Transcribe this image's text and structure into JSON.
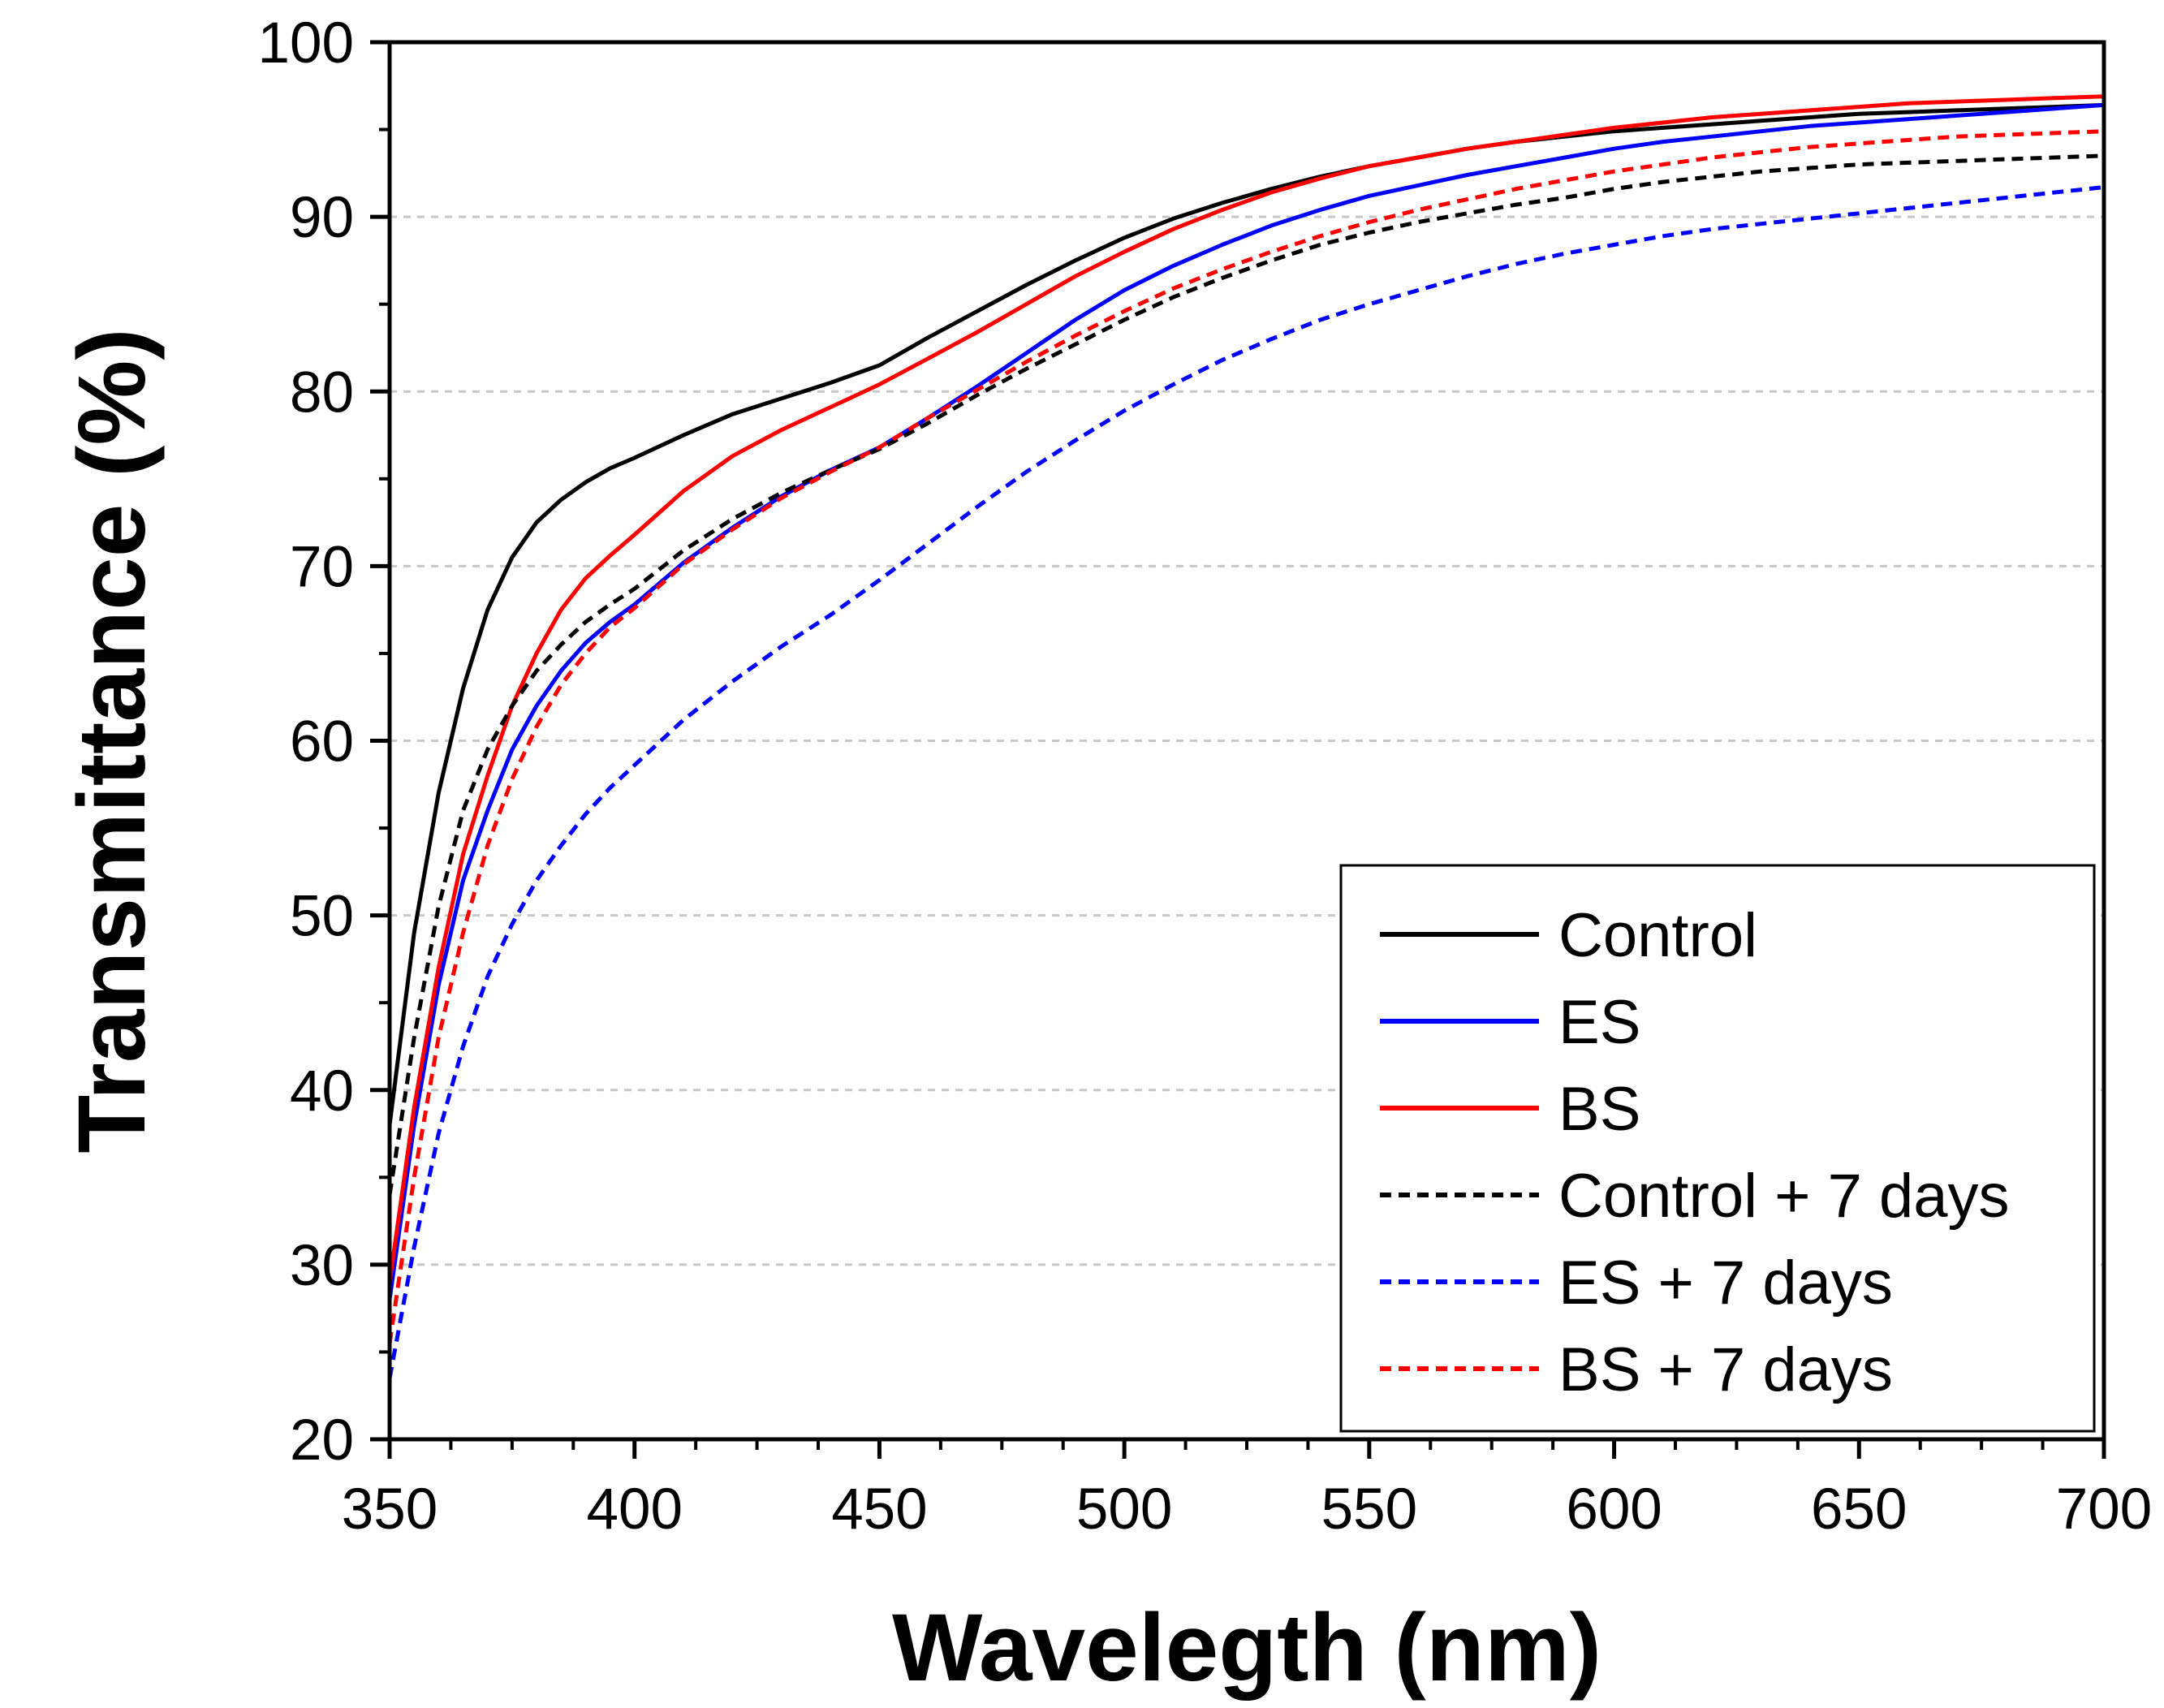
{
  "chart_data": {
    "type": "line",
    "title": "",
    "xlabel": "Wavelegth (nm)",
    "ylabel": "Transmittance (%)",
    "xlim": [
      350,
      700
    ],
    "ylim": [
      20,
      100
    ],
    "xticks": [
      350,
      400,
      450,
      500,
      550,
      600,
      650,
      700
    ],
    "yticks": [
      20,
      30,
      40,
      50,
      60,
      70,
      80,
      90,
      100
    ],
    "grid": "horizontal dashed",
    "legend_position": "bottom-right",
    "x": [
      350,
      355,
      360,
      365,
      370,
      375,
      380,
      385,
      390,
      395,
      400,
      410,
      420,
      430,
      440,
      450,
      460,
      470,
      480,
      490,
      500,
      510,
      520,
      530,
      540,
      550,
      560,
      570,
      580,
      590,
      600,
      610,
      620,
      630,
      640,
      650,
      660,
      670,
      680,
      690,
      700
    ],
    "series": [
      {
        "name": "Control",
        "color": "#000000",
        "dash": "solid",
        "values": [
          38,
          49,
          57,
          63,
          67.5,
          70.5,
          72.5,
          73.8,
          74.8,
          75.6,
          76.2,
          77.5,
          78.7,
          79.6,
          80.5,
          81.5,
          83.1,
          84.6,
          86.1,
          87.5,
          88.8,
          89.9,
          90.8,
          91.6,
          92.3,
          92.9,
          93.4,
          93.9,
          94.3,
          94.6,
          94.9,
          95.1,
          95.3,
          95.5,
          95.7,
          95.9,
          96,
          96.1,
          96.2,
          96.3,
          96.4
        ]
      },
      {
        "name": "ES",
        "color": "#0000FF",
        "dash": "solid",
        "values": [
          28,
          38,
          46,
          52,
          56,
          59.5,
          62,
          64,
          65.6,
          66.8,
          67.8,
          70.2,
          72.2,
          74,
          75.5,
          76.8,
          78.5,
          80.3,
          82.2,
          84.1,
          85.8,
          87.2,
          88.4,
          89.5,
          90.4,
          91.2,
          91.8,
          92.4,
          92.9,
          93.4,
          93.9,
          94.3,
          94.6,
          94.9,
          95.2,
          95.4,
          95.6,
          95.8,
          96,
          96.2,
          96.4
        ]
      },
      {
        "name": "BS",
        "color": "#FF0000",
        "dash": "solid",
        "values": [
          29,
          39,
          47,
          53.5,
          58,
          62,
          65,
          67.5,
          69.3,
          70.6,
          71.8,
          74.3,
          76.3,
          77.8,
          79.1,
          80.4,
          81.9,
          83.4,
          85,
          86.6,
          88,
          89.3,
          90.4,
          91.4,
          92.2,
          92.9,
          93.4,
          93.9,
          94.3,
          94.7,
          95.1,
          95.4,
          95.7,
          95.9,
          96.1,
          96.3,
          96.5,
          96.6,
          96.7,
          96.8,
          96.9
        ]
      },
      {
        "name": "Control + 7 days",
        "color": "#000000",
        "dash": "dashed",
        "values": [
          34,
          43,
          50.5,
          56,
          59.5,
          62,
          64,
          65.5,
          66.8,
          67.8,
          68.7,
          70.9,
          72.7,
          74.2,
          75.5,
          76.7,
          78.2,
          79.8,
          81.3,
          82.7,
          84.1,
          85.4,
          86.5,
          87.5,
          88.4,
          89.1,
          89.7,
          90.2,
          90.7,
          91.1,
          91.6,
          92,
          92.3,
          92.6,
          92.8,
          93,
          93.1,
          93.2,
          93.3,
          93.4,
          93.5
        ]
      },
      {
        "name": "ES + 7 days",
        "color": "#0000FF",
        "dash": "dashed",
        "values": [
          23.5,
          31,
          37.5,
          42.5,
          46.5,
          49.5,
          52,
          54,
          55.8,
          57.3,
          58.6,
          61.2,
          63.4,
          65.4,
          67.2,
          69.2,
          71.3,
          73.4,
          75.4,
          77.2,
          78.9,
          80.4,
          81.8,
          83,
          84.1,
          85,
          85.8,
          86.6,
          87.3,
          87.9,
          88.4,
          88.9,
          89.3,
          89.6,
          89.9,
          90.2,
          90.5,
          90.8,
          91.1,
          91.4,
          91.7
        ]
      },
      {
        "name": "BS + 7 days",
        "color": "#FF0000",
        "dash": "dashed",
        "values": [
          25.5,
          35,
          43,
          49,
          54,
          57.8,
          60.8,
          63.2,
          65,
          66.5,
          67.6,
          70.1,
          72.1,
          73.9,
          75.4,
          76.8,
          78.5,
          80.1,
          81.7,
          83.2,
          84.6,
          85.9,
          87,
          88,
          88.9,
          89.7,
          90.4,
          91,
          91.6,
          92.1,
          92.6,
          93,
          93.4,
          93.7,
          94,
          94.2,
          94.4,
          94.6,
          94.7,
          94.8,
          94.9
        ]
      }
    ]
  }
}
